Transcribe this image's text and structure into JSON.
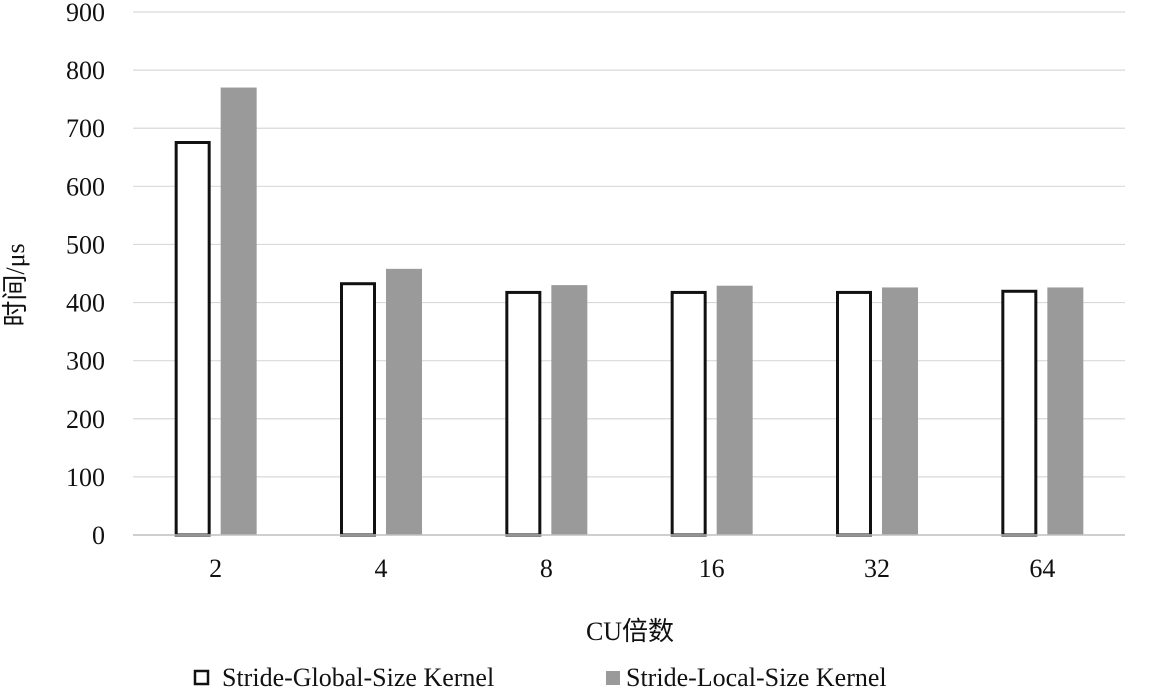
{
  "chart_data": {
    "type": "bar",
    "categories": [
      "2",
      "4",
      "8",
      "16",
      "32",
      "64"
    ],
    "series": [
      {
        "name": "Stride-Global-Size Kernel",
        "values": [
          678,
          435,
          420,
          420,
          420,
          422
        ],
        "fill": "#ffffff",
        "stroke": "#111111"
      },
      {
        "name": "Stride-Local-Size Kernel",
        "values": [
          770,
          458,
          430,
          429,
          426,
          426
        ],
        "fill": "#9a9a9a",
        "stroke": "none"
      }
    ],
    "xlabel": "CU倍数",
    "ylabel": "时间/μs",
    "ylim": [
      0,
      900
    ],
    "yticks": [
      0,
      100,
      200,
      300,
      400,
      500,
      600,
      700,
      800,
      900
    ],
    "grid": true,
    "legend": "bottom",
    "colors": {
      "grid": "#d9d9d9",
      "axis": "#bfbfbf",
      "text": "#111111"
    }
  }
}
